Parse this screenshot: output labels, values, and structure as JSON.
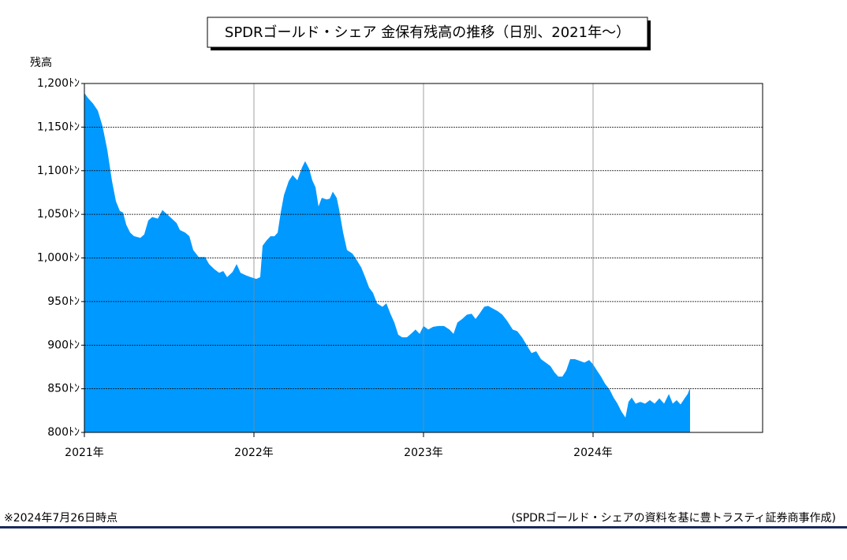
{
  "chart_data": {
    "type": "area",
    "title": "SPDRゴールド・シェア 金保有残高の推移（日別、2021年～）",
    "y_label": "残高",
    "note_left": "※2024年7月26日時点",
    "note_right": "(SPDRゴールド・シェアの資料を基に豊トラスティ証券商事作成)",
    "color": "#0099ff",
    "grid": true,
    "xlim": [
      2021,
      2025
    ],
    "xticks": [
      {
        "value": 2021,
        "label": "2021年"
      },
      {
        "value": 2022,
        "label": "2022年"
      },
      {
        "value": 2023,
        "label": "2023年"
      },
      {
        "value": 2024,
        "label": "2024年"
      }
    ],
    "ylim": [
      800,
      1200
    ],
    "yticks": [
      {
        "value": 800,
        "label": "800ﾄﾝ"
      },
      {
        "value": 850,
        "label": "850ﾄﾝ"
      },
      {
        "value": 900,
        "label": "900ﾄﾝ"
      },
      {
        "value": 950,
        "label": "950ﾄﾝ"
      },
      {
        "value": 1000,
        "label": "1,000ﾄﾝ"
      },
      {
        "value": 1050,
        "label": "1,050ﾄﾝ"
      },
      {
        "value": 1100,
        "label": "1,100ﾄﾝ"
      },
      {
        "value": 1150,
        "label": "1,150ﾄﾝ"
      },
      {
        "value": 1200,
        "label": "1,200ﾄﾝ"
      }
    ],
    "x": [
      2021.0,
      2021.023,
      2021.051,
      2021.079,
      2021.107,
      2021.135,
      2021.163,
      2021.186,
      2021.209,
      2021.228,
      2021.247,
      2021.27,
      2021.293,
      2021.33,
      2021.353,
      2021.377,
      2021.4,
      2021.433,
      2021.46,
      2021.488,
      2021.516,
      2021.544,
      2021.563,
      2021.595,
      2021.619,
      2021.642,
      2021.674,
      2021.712,
      2021.735,
      2021.767,
      2021.795,
      2021.819,
      2021.842,
      2021.874,
      2021.898,
      2021.921,
      2021.953,
      2021.981,
      2022.014,
      2022.037,
      2022.051,
      2022.074,
      2022.098,
      2022.121,
      2022.14,
      2022.158,
      2022.177,
      2022.205,
      2022.228,
      2022.256,
      2022.284,
      2022.302,
      2022.326,
      2022.344,
      2022.363,
      2022.381,
      2022.4,
      2022.428,
      2022.447,
      2022.465,
      2022.488,
      2022.502,
      2022.526,
      2022.549,
      2022.581,
      2022.605,
      2022.633,
      2022.656,
      2022.679,
      2022.702,
      2022.726,
      2022.758,
      2022.781,
      2022.805,
      2022.828,
      2022.851,
      2022.874,
      2022.902,
      2022.926,
      2022.953,
      2022.977,
      2023.0,
      2023.028,
      2023.056,
      2023.088,
      2023.121,
      2023.153,
      2023.177,
      2023.2,
      2023.228,
      2023.256,
      2023.284,
      2023.307,
      2023.33,
      2023.358,
      2023.381,
      2023.409,
      2023.437,
      2023.465,
      2023.493,
      2023.526,
      2023.553,
      2023.581,
      2023.609,
      2023.637,
      2023.665,
      2023.693,
      2023.721,
      2023.749,
      2023.772,
      2023.795,
      2023.819,
      2023.842,
      2023.865,
      2023.893,
      2023.921,
      2023.949,
      2023.977,
      2024.0,
      2024.023,
      2024.047,
      2024.07,
      2024.098,
      2024.121,
      2024.144,
      2024.167,
      2024.191,
      2024.209,
      2024.228,
      2024.251,
      2024.279,
      2024.307,
      2024.335,
      2024.363,
      2024.391,
      2024.419,
      2024.447,
      2024.47,
      2024.493,
      2024.516,
      2024.54,
      2024.558,
      2024.572
    ],
    "values": [
      1189,
      1183,
      1177,
      1169,
      1151,
      1124,
      1088,
      1065,
      1054,
      1052,
      1038,
      1029,
      1025,
      1023,
      1027,
      1043,
      1047,
      1045,
      1055,
      1050,
      1045,
      1040,
      1032,
      1029,
      1025,
      1009,
      1001,
      1001,
      993,
      987,
      983,
      985,
      978,
      984,
      993,
      983,
      980,
      978,
      976,
      978,
      1014,
      1020,
      1025,
      1025,
      1029,
      1052,
      1072,
      1088,
      1095,
      1089,
      1104,
      1111,
      1102,
      1089,
      1081,
      1059,
      1069,
      1067,
      1068,
      1076,
      1069,
      1056,
      1029,
      1009,
      1005,
      998,
      989,
      978,
      966,
      960,
      948,
      944,
      948,
      936,
      926,
      912,
      909,
      909,
      913,
      918,
      913,
      922,
      918,
      921,
      922,
      922,
      918,
      913,
      926,
      930,
      935,
      936,
      930,
      936,
      944,
      945,
      942,
      939,
      935,
      928,
      918,
      916,
      909,
      900,
      891,
      893,
      884,
      880,
      876,
      869,
      864,
      864,
      871,
      884,
      884,
      882,
      880,
      883,
      878,
      871,
      864,
      856,
      849,
      840,
      833,
      824,
      817,
      835,
      840,
      833,
      835,
      833,
      837,
      833,
      839,
      833,
      844,
      833,
      837,
      832,
      839,
      844,
      851
    ]
  }
}
